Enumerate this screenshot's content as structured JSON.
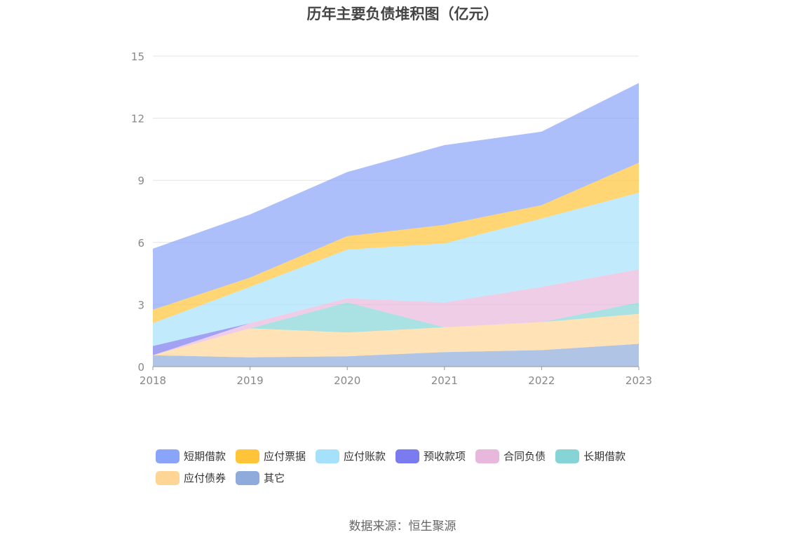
{
  "chart_data": {
    "type": "area",
    "stacked": true,
    "title": "历年主要负债堆积图（亿元）",
    "xlabel": "",
    "ylabel": "",
    "categories": [
      "2018",
      "2019",
      "2020",
      "2021",
      "2022",
      "2023"
    ],
    "ylim": [
      0,
      15
    ],
    "yticks": [
      "0",
      "3",
      "6",
      "9",
      "12",
      "15"
    ],
    "grid": true,
    "legend_position": "bottom",
    "series": [
      {
        "name": "其它",
        "color": "#8eabdb",
        "values": [
          0.55,
          0.45,
          0.5,
          0.7,
          0.8,
          1.1
        ]
      },
      {
        "name": "应付债券",
        "color": "#ffd595",
        "values": [
          0.0,
          1.4,
          1.15,
          1.2,
          1.35,
          1.45
        ]
      },
      {
        "name": "长期借款",
        "color": "#86d4d6",
        "values": [
          0.0,
          0.0,
          1.45,
          0.0,
          0.0,
          0.55
        ]
      },
      {
        "name": "合同负债",
        "color": "#e8b8dc",
        "values": [
          0.0,
          0.25,
          0.2,
          1.2,
          1.7,
          1.6
        ]
      },
      {
        "name": "预收款项",
        "color": "#7b7bf0",
        "values": [
          0.45,
          0.0,
          0.0,
          0.0,
          0.0,
          0.0
        ]
      },
      {
        "name": "应付账款",
        "color": "#a6e1fb",
        "values": [
          1.1,
          1.75,
          2.35,
          2.85,
          3.3,
          3.7
        ]
      },
      {
        "name": "应付票据",
        "color": "#ffc437",
        "values": [
          0.65,
          0.45,
          0.65,
          0.9,
          0.65,
          1.45
        ]
      },
      {
        "name": "短期借款",
        "color": "#8aa4fa",
        "values": [
          2.95,
          3.05,
          3.1,
          3.85,
          3.55,
          3.85
        ]
      }
    ],
    "legend_order": [
      "短期借款",
      "应付票据",
      "应付账款",
      "预收款项",
      "合同负债",
      "长期借款",
      "应付债券",
      "其它"
    ]
  },
  "footer": {
    "source": "数据来源：恒生聚源"
  }
}
